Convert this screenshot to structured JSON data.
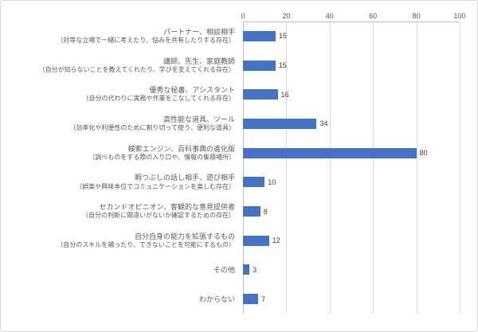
{
  "chart_data": {
    "type": "bar",
    "orientation": "horizontal",
    "title": "",
    "xlabel": "",
    "ylabel": "",
    "xlim": [
      0,
      100
    ],
    "ticks": [
      0,
      20,
      40,
      60,
      80,
      100
    ],
    "grid": true,
    "bar_color": "#4472C4",
    "categories": [
      "パートナー、相談相手",
      "講師、先生、家庭教師",
      "優秀な秘書、アシスタント",
      "高性能な道具、ツール",
      "検索エンジン、百科事典の進化版",
      "暇つぶしの話し相手、遊び相手",
      "セカンドオピニオン、客観的な意見提供者",
      "自分自身の能力を拡張するもの",
      "その他",
      "わからない"
    ],
    "sublabels": [
      "（対等な立場で一緒に考えたり、悩みを共有したりする存在）",
      "（自分が知らないことを教えてくれたり、学びを支えてくれる存在）",
      "（自分の代わりに実務や作業をこなしてくれる存在）",
      "（効率化や利便性のために割り切って使う、便利な道具）",
      "（調べものをする際の入り口や、情報の集積場所）",
      "（娯楽や興味本位でコミュニケーションを楽しむ存在）",
      "（自分の判断に間違いがないか確認するための存在）",
      "（自分のスキルを補ったり、できないことを可能にするもの）",
      "",
      ""
    ],
    "values": [
      15,
      15,
      16,
      34,
      80,
      10,
      8,
      12,
      3,
      7
    ]
  }
}
